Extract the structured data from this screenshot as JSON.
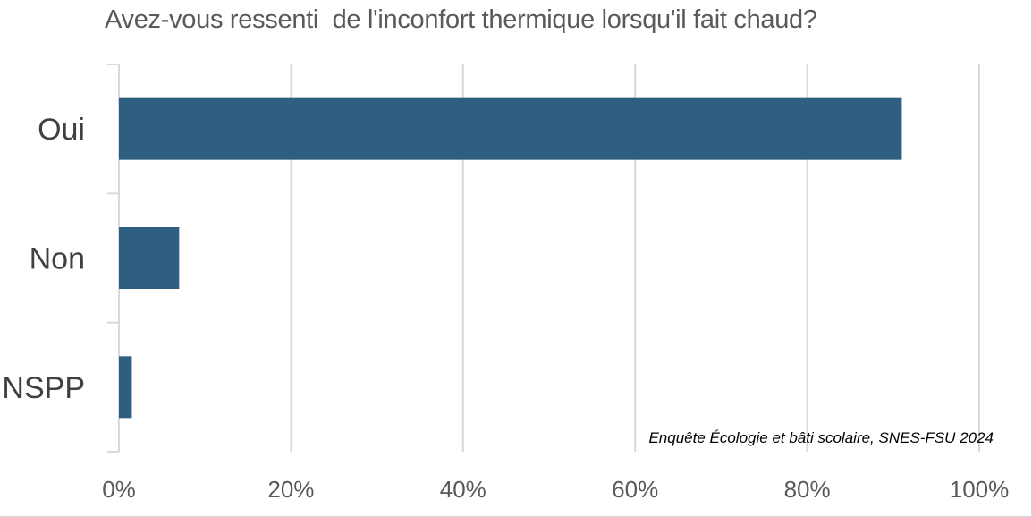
{
  "chart_data": {
    "type": "bar",
    "orientation": "horizontal",
    "title": "Avez-vous ressenti  de l'inconfort thermique lorsqu'il fait chaud?",
    "categories": [
      "Oui",
      "Non",
      "NSPP"
    ],
    "values": [
      91,
      7,
      1.5
    ],
    "xlim": [
      0,
      100
    ],
    "x_ticks": [
      0,
      20,
      40,
      60,
      80,
      100
    ],
    "x_tick_labels": [
      "0%",
      "20%",
      "40%",
      "60%",
      "80%",
      "100%"
    ],
    "grid": true,
    "bar_color": "#2e5f80",
    "annotation": "Enquête Écologie et bâti scolaire, SNES-FSU 2024"
  }
}
